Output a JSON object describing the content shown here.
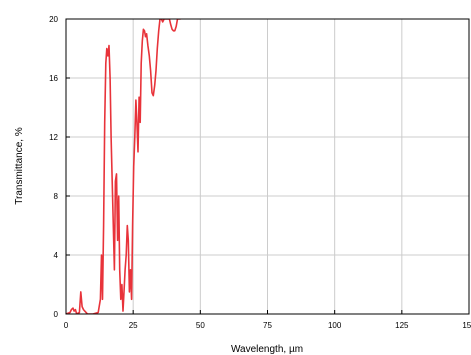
{
  "chart_data": {
    "type": "line",
    "title": "",
    "xlabel": "Wavelength, µm",
    "ylabel": "Transmittance, %",
    "xlim": [
      0,
      150
    ],
    "ylim": [
      0,
      20
    ],
    "xticks": [
      0,
      25,
      50,
      75,
      100,
      125,
      150
    ],
    "yticks": [
      0,
      4,
      8,
      12,
      16,
      20
    ],
    "xtick_labels": [
      "0",
      "25",
      "50",
      "75",
      "100",
      "125",
      "150"
    ],
    "ytick_labels": [
      "0",
      "4",
      "8",
      "12",
      "16",
      "20"
    ],
    "grid": true,
    "legend": "none",
    "series": [
      {
        "color": "#e8333a",
        "x": [
          0.0,
          1.5,
          2.0,
          2.6,
          3.0,
          3.5,
          4.0,
          5.0,
          5.5,
          6.0,
          6.5,
          7.0,
          8.0,
          10.0,
          12.0,
          12.8,
          13.2,
          13.6,
          14.0,
          14.4,
          14.8,
          15.2,
          15.6,
          16.0,
          16.4,
          16.8,
          17.2,
          17.6,
          18.0,
          18.4,
          18.8,
          19.2,
          19.6,
          20.0,
          20.4,
          20.8,
          21.2,
          21.6,
          22.0,
          22.4,
          22.8,
          23.2,
          23.6,
          24.0,
          24.4,
          24.8,
          25.2,
          25.6,
          26.0,
          26.4,
          26.8,
          27.2,
          27.6,
          28.0,
          28.4,
          28.8,
          29.2,
          29.6,
          30.0,
          30.5,
          31.0,
          31.5,
          32.0,
          32.5,
          33.0,
          33.5,
          34.0,
          34.5,
          35.0,
          35.5,
          36.0,
          36.5,
          37.0,
          37.5,
          38.0,
          38.5,
          39.0,
          39.5,
          40.0,
          40.5,
          41.0,
          41.5,
          42.0,
          42.5
        ],
        "y": [
          0.0,
          0.1,
          0.3,
          0.4,
          0.2,
          0.3,
          0.0,
          0.1,
          1.5,
          0.5,
          0.3,
          0.2,
          0.0,
          0.0,
          0.1,
          1.0,
          4.0,
          1.0,
          6.0,
          13.0,
          17.0,
          18.0,
          17.5,
          18.2,
          16.0,
          12.0,
          9.0,
          6.0,
          3.0,
          9.0,
          9.5,
          5.0,
          8.0,
          3.0,
          1.0,
          2.0,
          0.2,
          1.5,
          3.0,
          4.0,
          6.0,
          5.0,
          1.5,
          3.0,
          1.0,
          6.0,
          10.0,
          12.0,
          14.5,
          13.0,
          11.0,
          14.7,
          13.0,
          17.0,
          18.5,
          19.3,
          19.2,
          18.8,
          19.0,
          18.2,
          17.5,
          16.5,
          15.0,
          14.8,
          15.5,
          16.5,
          18.0,
          19.2,
          20.0,
          20.0,
          19.8,
          20.0,
          20.0,
          20.0,
          20.0,
          20.0,
          19.6,
          19.3,
          19.2,
          19.2,
          19.5,
          20.0,
          20.0,
          20.0
        ]
      }
    ]
  }
}
